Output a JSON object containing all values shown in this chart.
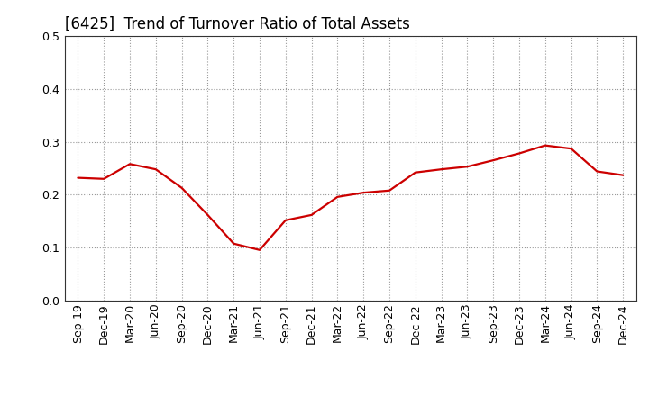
{
  "title": "[6425]  Trend of Turnover Ratio of Total Assets",
  "x_labels": [
    "Sep-19",
    "Dec-19",
    "Mar-20",
    "Jun-20",
    "Sep-20",
    "Dec-20",
    "Mar-21",
    "Jun-21",
    "Sep-21",
    "Dec-21",
    "Mar-22",
    "Jun-22",
    "Sep-22",
    "Dec-22",
    "Mar-23",
    "Jun-23",
    "Sep-23",
    "Dec-23",
    "Mar-24",
    "Jun-24",
    "Sep-24",
    "Dec-24"
  ],
  "values": [
    0.232,
    0.23,
    0.258,
    0.248,
    0.213,
    0.162,
    0.108,
    0.096,
    0.152,
    0.162,
    0.196,
    0.204,
    0.208,
    0.242,
    0.248,
    0.253,
    0.265,
    0.278,
    0.293,
    0.287,
    0.244,
    0.237
  ],
  "line_color": "#cc0000",
  "line_width": 1.6,
  "ylim": [
    0.0,
    0.5
  ],
  "yticks": [
    0.0,
    0.1,
    0.2,
    0.3,
    0.4,
    0.5
  ],
  "background_color": "#ffffff",
  "grid_color": "#999999",
  "title_fontsize": 12,
  "tick_fontsize": 9,
  "title_fontweight": "normal"
}
